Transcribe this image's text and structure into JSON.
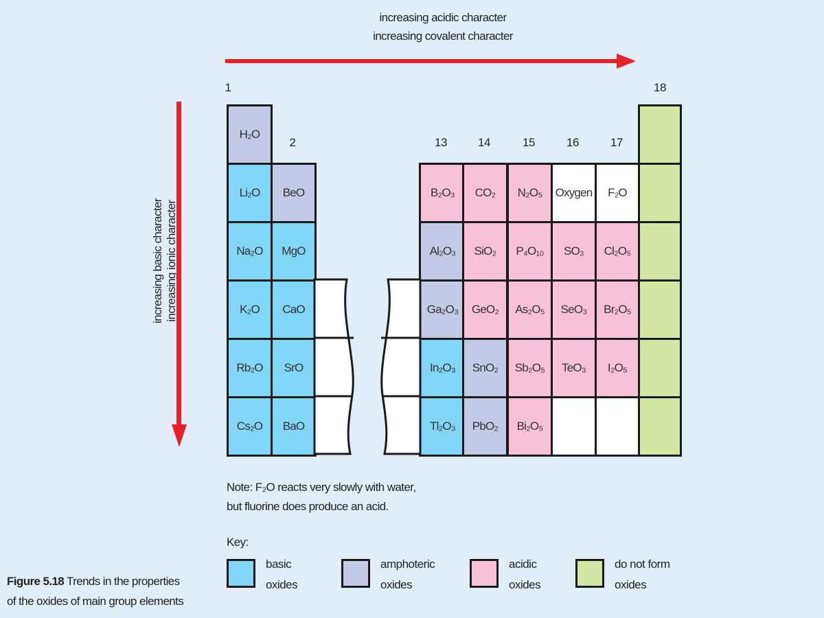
{
  "top_labels": [
    "increasing acidic character",
    "increasing covalent character"
  ],
  "side_labels": [
    "increasing basic character",
    "increasing ionic character"
  ],
  "group_labels": {
    "g1": "1",
    "g2": "2",
    "g13": "13",
    "g14": "14",
    "g15": "15",
    "g16": "16",
    "g17": "17",
    "g18": "18"
  },
  "colors": {
    "basic": "#81d5f6",
    "amphoteric": "#c3c9e7",
    "acidic": "#f7c1d8",
    "none": "#d4e6a3",
    "empty": "#ffffff",
    "arrow": "#e8202a"
  },
  "rows": [
    {
      "g1": {
        "f": "H₂O",
        "t": "amphoteric"
      }
    },
    {
      "g1": {
        "f": "Li₂O",
        "t": "basic"
      },
      "g2": {
        "f": "BeO",
        "t": "amphoteric"
      },
      "g13": {
        "f": "B₂O₃",
        "t": "acidic"
      },
      "g14": {
        "f": "CO₂",
        "t": "acidic"
      },
      "g15": {
        "f": "N₂O₅",
        "t": "acidic"
      },
      "g16": {
        "f": "Oxygen",
        "t": "empty"
      },
      "g17": {
        "f": "F₂O",
        "t": "empty"
      }
    },
    {
      "g1": {
        "f": "Na₂O",
        "t": "basic"
      },
      "g2": {
        "f": "MgO",
        "t": "basic"
      },
      "g13": {
        "f": "Al₂O₃",
        "t": "amphoteric"
      },
      "g14": {
        "f": "SiO₂",
        "t": "acidic"
      },
      "g15": {
        "f": "P₄O₁₀",
        "t": "acidic"
      },
      "g16": {
        "f": "SO₃",
        "t": "acidic"
      },
      "g17": {
        "f": "Cl₂O₅",
        "t": "acidic"
      }
    },
    {
      "g1": {
        "f": "K₂O",
        "t": "basic"
      },
      "g2": {
        "f": "CaO",
        "t": "basic"
      },
      "g13": {
        "f": "Ga₂O₃",
        "t": "amphoteric"
      },
      "g14": {
        "f": "GeO₂",
        "t": "acidic"
      },
      "g15": {
        "f": "As₂O₅",
        "t": "acidic"
      },
      "g16": {
        "f": "SeO₃",
        "t": "acidic"
      },
      "g17": {
        "f": "Br₂O₅",
        "t": "acidic"
      }
    },
    {
      "g1": {
        "f": "Rb₂O",
        "t": "basic"
      },
      "g2": {
        "f": "SrO",
        "t": "basic"
      },
      "g13": {
        "f": "In₂O₃",
        "t": "basic"
      },
      "g14": {
        "f": "SnO₂",
        "t": "amphoteric"
      },
      "g15": {
        "f": "Sb₂O₅",
        "t": "acidic"
      },
      "g16": {
        "f": "TeO₃",
        "t": "acidic"
      },
      "g17": {
        "f": "I₂O₅",
        "t": "acidic"
      }
    },
    {
      "g1": {
        "f": "Cs₂O",
        "t": "basic"
      },
      "g2": {
        "f": "BaO",
        "t": "basic"
      },
      "g13": {
        "f": "Tl₂O₃",
        "t": "basic"
      },
      "g14": {
        "f": "PbO₂",
        "t": "amphoteric"
      },
      "g15": {
        "f": "Bi₂O₅",
        "t": "acidic"
      },
      "g16": {
        "f": "",
        "t": "empty"
      },
      "g17": {
        "f": "",
        "t": "empty"
      }
    }
  ],
  "note": [
    "Note: F₂O reacts very slowly with water,",
    "but fluorine does produce an acid."
  ],
  "key": {
    "title": "Key:",
    "items": [
      {
        "type": "basic",
        "l1": "basic",
        "l2": "oxides"
      },
      {
        "type": "amphoteric",
        "l1": "amphoteric",
        "l2": "oxides"
      },
      {
        "type": "acidic",
        "l1": "acidic",
        "l2": "oxides"
      },
      {
        "type": "none",
        "l1": "do not form",
        "l2": "oxides"
      }
    ]
  },
  "caption": {
    "label": "Figure 5.18",
    "text1": "Trends in the properties",
    "text2": "of the oxides of main group elements"
  }
}
